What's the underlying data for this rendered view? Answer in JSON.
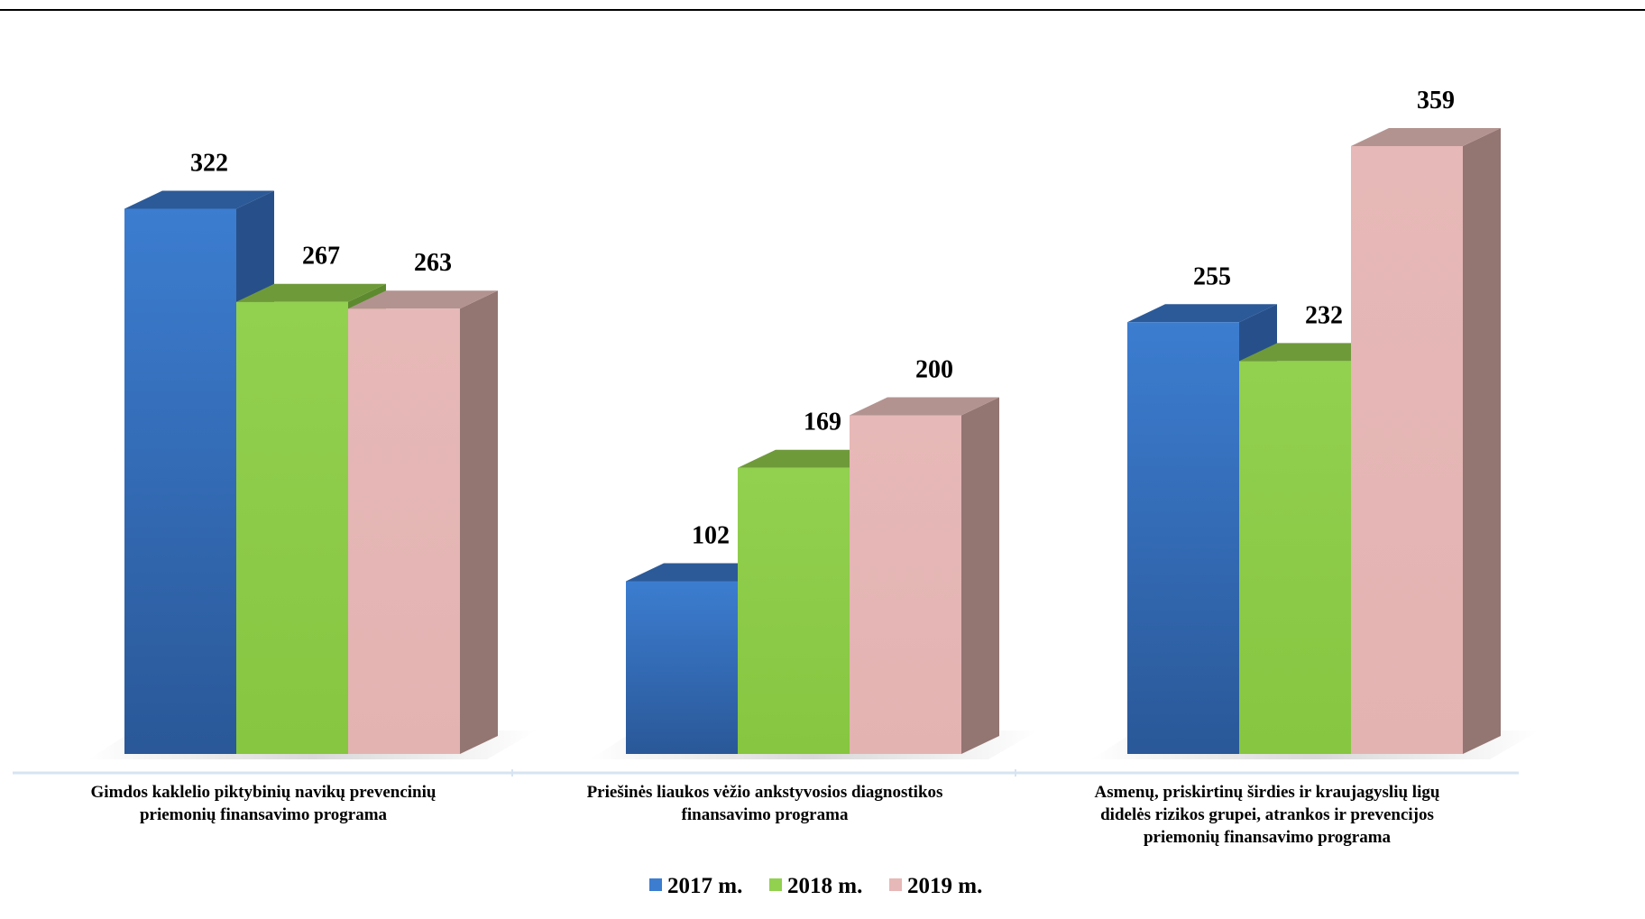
{
  "chart_data": {
    "type": "bar",
    "categories": [
      [
        "Gimdos kaklelio piktybinių navikų prevencinių",
        "priemonių finansavimo programa"
      ],
      [
        "Priešinės liaukos vėžio ankstyvosios diagnostikos",
        "finansavimo programa"
      ],
      [
        "Asmenų, priskirtinų širdies ir kraujagyslių ligų",
        "didelės rizikos grupei, atrankos ir prevencijos",
        "priemonių finansavimo programa"
      ]
    ],
    "series": [
      {
        "name": "2017 m.",
        "values": [
          322,
          102,
          255
        ],
        "color": "#3c7dd0",
        "side": "#27508a",
        "top": "#2c5a98"
      },
      {
        "name": "2018 m.",
        "values": [
          267,
          169,
          232
        ],
        "color": "#92d050",
        "side": "#5d8a2e",
        "top": "#6f9a3a"
      },
      {
        "name": "2019 m.",
        "values": [
          263,
          200,
          359
        ],
        "color": "#e6b8b7",
        "side": "#937572",
        "top": "#b39390"
      }
    ],
    "ylim": [
      0,
      359
    ],
    "grid": false,
    "legend_position": "bottom",
    "data_labels": true,
    "style": "3d-clustered-column"
  }
}
